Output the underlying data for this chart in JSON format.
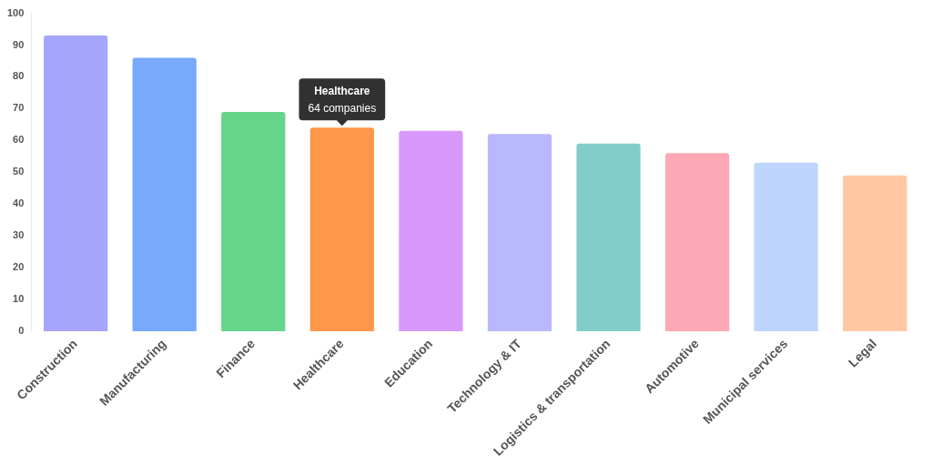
{
  "chart_data": {
    "type": "bar",
    "categories": [
      "Construction",
      "Manufacturing",
      "Finance",
      "Healthcare",
      "Education",
      "Technology & IT",
      "Logistics & transportation",
      "Automotive",
      "Municipal services",
      "Legal"
    ],
    "values": [
      93,
      86,
      69,
      64,
      63,
      62,
      59,
      56,
      53,
      49
    ],
    "colors": [
      "#a5a5fb",
      "#78a9fb",
      "#66d48a",
      "#ff964a",
      "#d898fb",
      "#b9b8fd",
      "#82cdc9",
      "#ffa8b5",
      "#bed6fe",
      "#ffc8a2"
    ],
    "ylim": [
      0,
      100
    ],
    "yticks": [
      0,
      10,
      20,
      30,
      40,
      50,
      60,
      70,
      80,
      90,
      100
    ],
    "grid": false,
    "legend": false,
    "annotations": [
      {
        "text": "Healthcare\n64 companies",
        "x": "Healthcare",
        "y": 64
      }
    ]
  }
}
